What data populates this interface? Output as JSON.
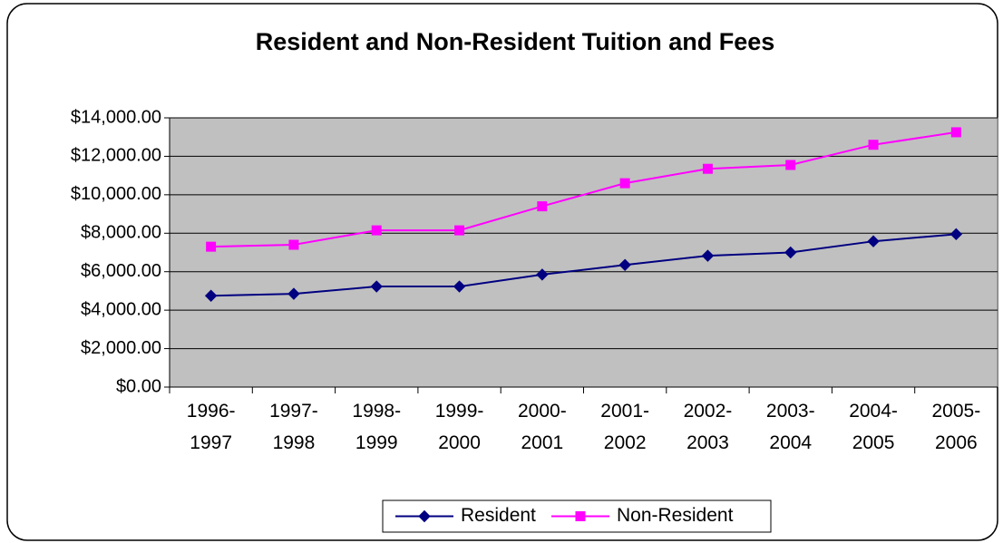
{
  "chart_data": {
    "type": "line",
    "title": "Resident and Non-Resident Tuition and Fees",
    "categories": [
      "1996-1997",
      "1997-1998",
      "1998-1999",
      "1999-2000",
      "2000-2001",
      "2001-2002",
      "2002-2003",
      "2003-2004",
      "2004-2005",
      "2005-2006"
    ],
    "series": [
      {
        "name": "Resident",
        "color": "#000080",
        "values": [
          4750,
          4850,
          5230,
          5230,
          5850,
          6350,
          6830,
          7000,
          7580,
          7950
        ]
      },
      {
        "name": "Non-Resident",
        "color": "#ff00ff",
        "values": [
          7300,
          7400,
          8150,
          8150,
          9400,
          10600,
          11350,
          11550,
          12600,
          13250
        ]
      }
    ],
    "ylim": [
      0,
      14000
    ],
    "yticks": [
      {
        "value": 0,
        "label": "$0.00"
      },
      {
        "value": 2000,
        "label": "$2,000.00"
      },
      {
        "value": 4000,
        "label": "$4,000.00"
      },
      {
        "value": 6000,
        "label": "$6,000.00"
      },
      {
        "value": 8000,
        "label": "$8,000.00"
      },
      {
        "value": 10000,
        "label": "$10,000.00"
      },
      {
        "value": 12000,
        "label": "$12,000.00"
      },
      {
        "value": 14000,
        "label": "$14,000.00"
      }
    ],
    "grid": true,
    "legend": "bottom"
  }
}
